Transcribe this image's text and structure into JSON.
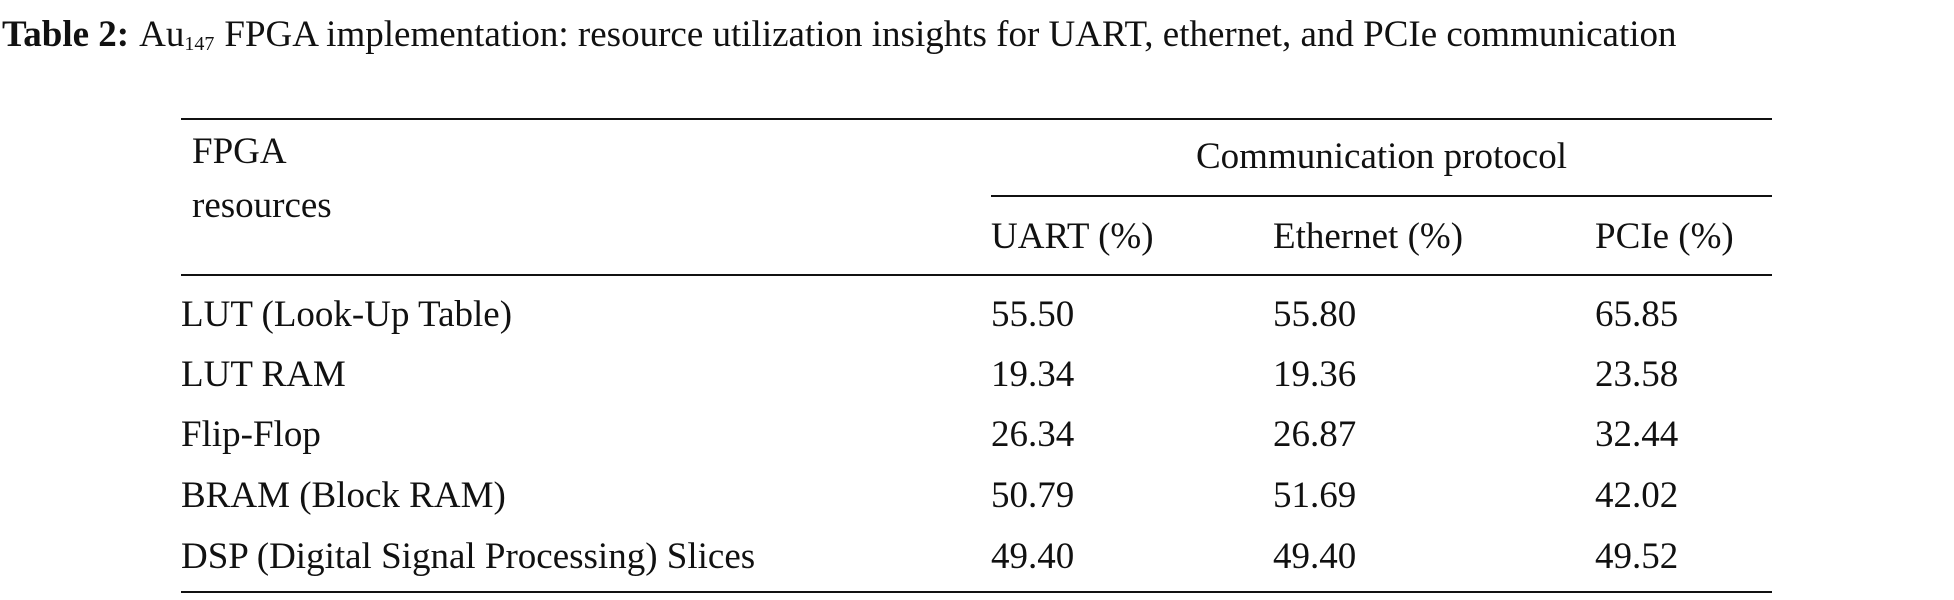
{
  "caption": {
    "label": "Table 2:",
    "prefix": "Au",
    "subscript": "147",
    "text": "FPGA implementation: resource utilization insights for UART, ethernet, and PCIe communication"
  },
  "table": {
    "corner_header": [
      "FPGA",
      "resources"
    ],
    "group_header": "Communication protocol",
    "columns": [
      "UART (%)",
      "Ethernet (%)",
      "PCIe (%)"
    ],
    "rows": [
      [
        "LUT (Look-Up Table)",
        "55.50",
        "55.80",
        "65.85"
      ],
      [
        "LUT RAM",
        "19.34",
        "19.36",
        "23.58"
      ],
      [
        "Flip-Flop",
        "26.34",
        "26.87",
        "32.44"
      ],
      [
        "BRAM (Block RAM)",
        "50.79",
        "51.69",
        "42.02"
      ],
      [
        "DSP (Digital Signal Processing) Slices",
        "49.40",
        "49.40",
        "49.52"
      ]
    ]
  }
}
